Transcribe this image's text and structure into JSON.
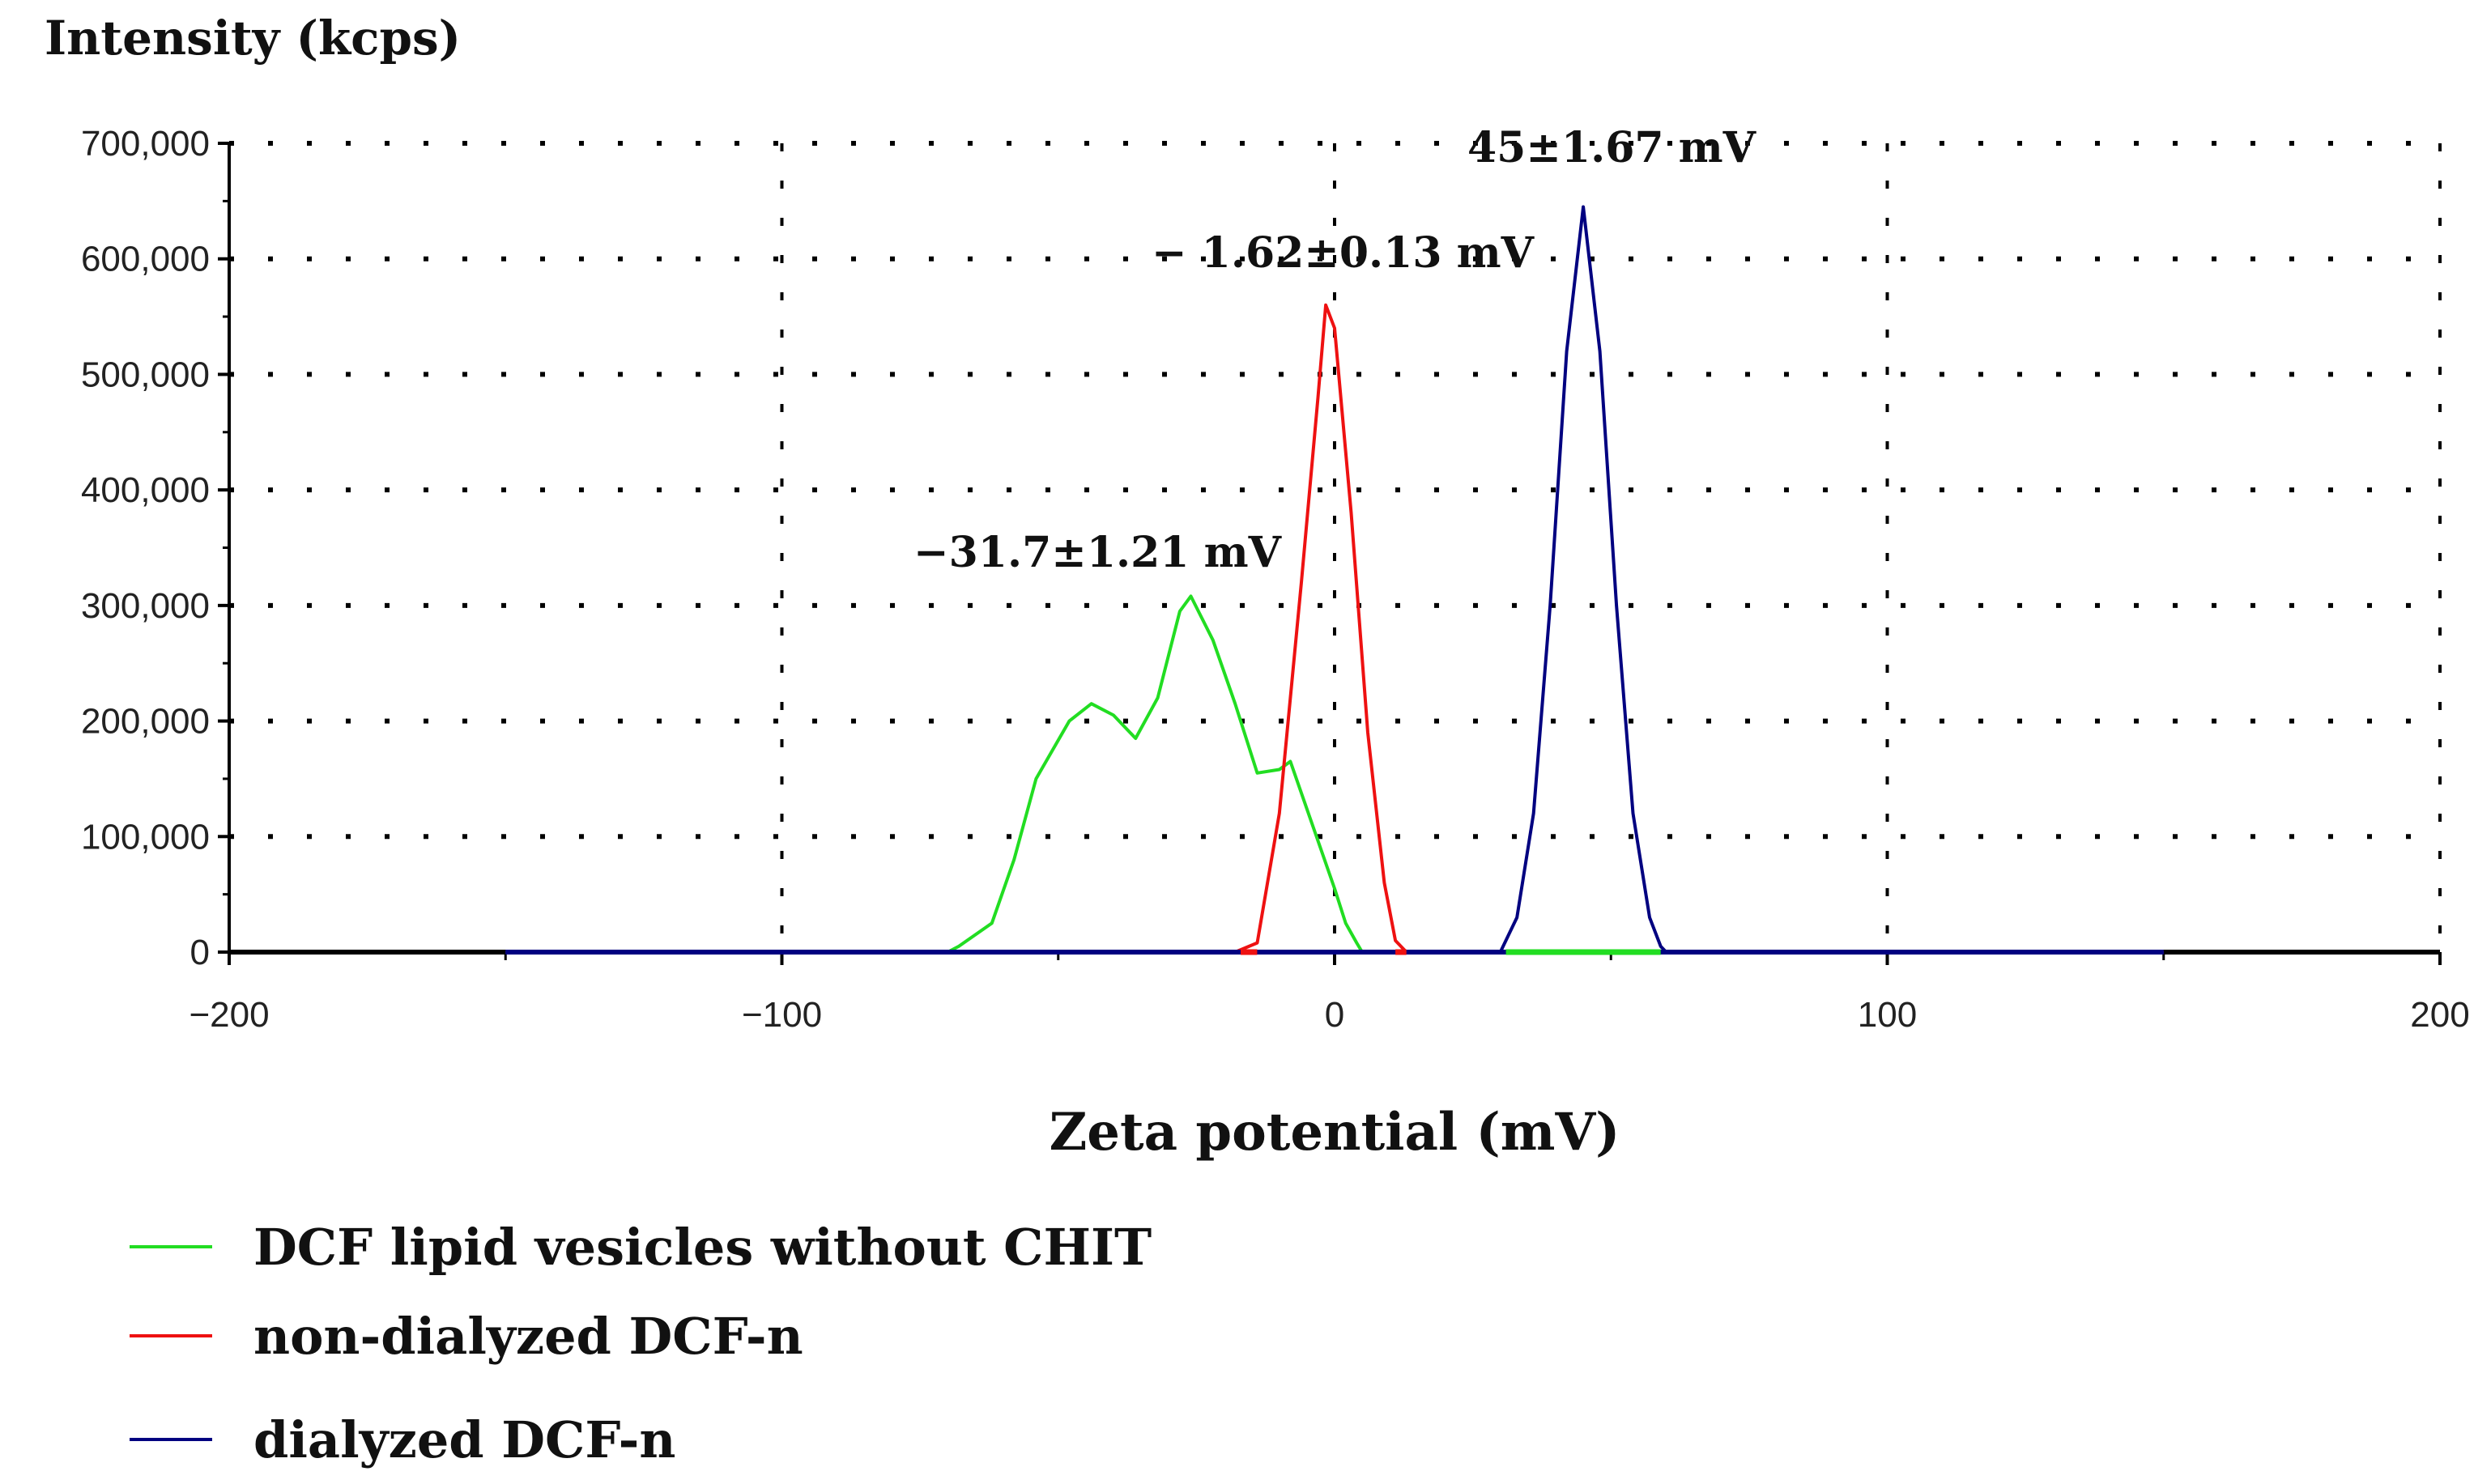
{
  "chart_data": {
    "type": "line",
    "ylabel": "Intensity (kcps)",
    "xlabel": "Zeta potential (mV)",
    "xlim": [
      -200,
      200
    ],
    "ylim": [
      0,
      700000
    ],
    "xticks": [
      -200,
      -100,
      0,
      100,
      200
    ],
    "xtick_labels": [
      "−200",
      "−100",
      "0",
      "100",
      "200"
    ],
    "yticks": [
      0,
      100000,
      200000,
      300000,
      400000,
      500000,
      600000,
      700000
    ],
    "ytick_labels": [
      "0",
      "100,000",
      "200,000",
      "300,000",
      "400,000",
      "500,000",
      "600,000",
      "700,000"
    ],
    "grid": true,
    "legend_position": "bottom-left",
    "series": [
      {
        "name": "DCF lipid vesicles without CHIT",
        "color": "#22dd22",
        "x": [
          -150,
          -70,
          -68,
          -62,
          -58,
          -54,
          -48,
          -44,
          -40,
          -36,
          -32,
          -28,
          -26,
          -22,
          -18,
          -14,
          -10,
          -8,
          -4,
          0,
          2,
          4,
          5,
          150
        ],
        "y": [
          0,
          0,
          5000,
          25000,
          80000,
          150000,
          200000,
          215000,
          205000,
          185000,
          220000,
          295000,
          308000,
          270000,
          215000,
          155000,
          158000,
          165000,
          110000,
          55000,
          25000,
          8000,
          0,
          0
        ]
      },
      {
        "name": "non-dialyzed DCF-n",
        "color": "#ee1111",
        "x": [
          -150,
          -18,
          -14,
          -10,
          -6,
          -3,
          -1.6,
          0,
          3,
          6,
          9,
          11,
          13,
          150
        ],
        "y": [
          0,
          0,
          8000,
          120000,
          320000,
          480000,
          560000,
          540000,
          380000,
          190000,
          60000,
          10000,
          0,
          0
        ]
      },
      {
        "name": "dialyzed DCF-n",
        "color": "#000080",
        "x": [
          -150,
          30,
          33,
          36,
          39,
          42,
          45,
          48,
          51,
          54,
          57,
          59,
          60,
          150
        ],
        "y": [
          0,
          0,
          30000,
          120000,
          300000,
          520000,
          645000,
          520000,
          300000,
          120000,
          30000,
          5000,
          0,
          0
        ]
      }
    ],
    "annotations": [
      {
        "text": "−31.7±1.21 mV",
        "x": -31.7
      },
      {
        "text": "− 1.62±0.13 mV",
        "x": -1.62
      },
      {
        "text": "45±1.67 mV",
        "x": 45
      }
    ]
  }
}
